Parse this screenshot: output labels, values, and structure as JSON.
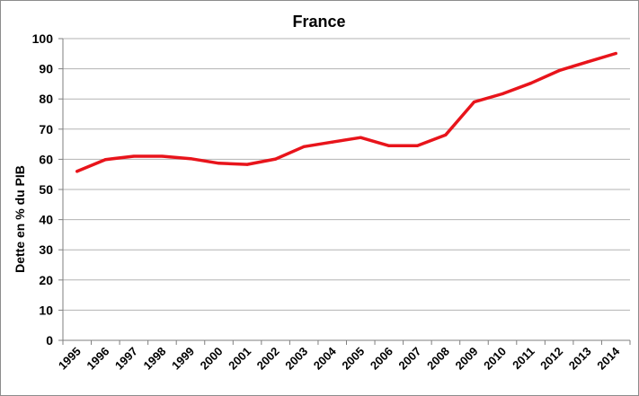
{
  "chart_data": {
    "type": "line",
    "title": "France",
    "xlabel": "",
    "ylabel": "Dette en % du PIB",
    "ylim": [
      0,
      100
    ],
    "yticks": [
      0,
      10,
      20,
      30,
      40,
      50,
      60,
      70,
      80,
      90,
      100
    ],
    "grid": true,
    "legend": "none",
    "categories": [
      "1995",
      "1996",
      "1997",
      "1998",
      "1999",
      "2000",
      "2001",
      "2002",
      "2003",
      "2004",
      "2005",
      "2006",
      "2007",
      "2008",
      "2009",
      "2010",
      "2011",
      "2012",
      "2013",
      "2014"
    ],
    "series": [
      {
        "color": "#e8141b",
        "values": [
          56.0,
          59.9,
          61.0,
          61.0,
          60.2,
          58.7,
          58.3,
          60.1,
          64.2,
          65.7,
          67.2,
          64.5,
          64.5,
          68.1,
          79.0,
          81.7,
          85.2,
          89.4,
          92.3,
          95.1
        ]
      }
    ]
  }
}
